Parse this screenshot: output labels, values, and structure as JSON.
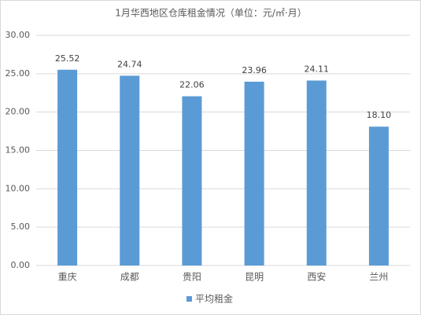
{
  "chart_data": {
    "type": "bar",
    "title": "1月华西地区仓库租金情况（单位：元/㎡·月）",
    "categories": [
      "重庆",
      "成都",
      "贵阳",
      "昆明",
      "西安",
      "兰州"
    ],
    "series": [
      {
        "name": "平均租金",
        "color": "#5b9bd5",
        "values": [
          25.52,
          24.74,
          22.06,
          23.96,
          24.11,
          18.1
        ],
        "value_labels": [
          "25.52",
          "24.74",
          "22.06",
          "23.96",
          "24.11",
          "18.10"
        ]
      }
    ],
    "ylim": [
      0,
      30
    ],
    "yticks": [
      {
        "value": 0,
        "label": "0.00"
      },
      {
        "value": 5,
        "label": "5.00"
      },
      {
        "value": 10,
        "label": "10.00"
      },
      {
        "value": 15,
        "label": "15.00"
      },
      {
        "value": 20,
        "label": "20.00"
      },
      {
        "value": 25,
        "label": "25.00"
      },
      {
        "value": 30,
        "label": "30.00"
      }
    ],
    "grid": true,
    "legend": "bottom"
  }
}
